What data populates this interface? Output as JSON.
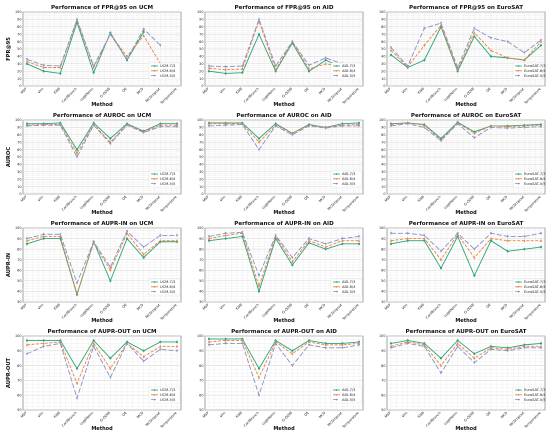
{
  "colors": {
    "s1": "#2ba37a",
    "s2": "#e8843c",
    "s3": "#8a8fc9"
  },
  "chart_data": [
    {
      "type": "line",
      "title": "Performance of FPR@95 on UCM",
      "xlabel": "Method",
      "ylabel": "FPR@95",
      "ylim": [
        0,
        100
      ],
      "yticks": [
        0,
        10,
        20,
        30,
        40,
        50,
        60,
        70,
        80,
        90,
        100
      ],
      "categories": [
        "MSP",
        "Vim",
        "KNN",
        "ConfBranch",
        "LogitNorm",
        "G-ODIN",
        "OE",
        "MCD",
        "MCDropout",
        "Temperature"
      ],
      "series": [
        {
          "name": "UCM-7/3",
          "values": [
            30,
            20,
            17,
            86,
            18,
            72,
            35,
            73,
            null,
            null
          ]
        },
        {
          "name": "UCM-6/4",
          "values": [
            33,
            25,
            25,
            89,
            25,
            70,
            40,
            68,
            30,
            null
          ]
        },
        {
          "name": "UCM-5/5",
          "values": [
            36,
            28,
            27,
            90,
            27,
            70,
            36,
            77,
            55,
            null
          ]
        }
      ]
    },
    {
      "type": "line",
      "title": "Performance of FPR@95 on AID",
      "xlabel": "Method",
      "ylabel": "",
      "ylim": [
        0,
        100
      ],
      "yticks": [
        0,
        10,
        20,
        30,
        40,
        50,
        60,
        70,
        80,
        90,
        100
      ],
      "categories": [
        "MSP",
        "Vim",
        "KNN",
        "ConfBranch",
        "LogitNorm",
        "G-ODIN",
        "OE",
        "MCD",
        "MCDropout",
        "Temperature"
      ],
      "series": [
        {
          "name": "AID-7/3",
          "values": [
            20,
            17,
            18,
            70,
            20,
            58,
            20,
            35,
            25,
            null
          ]
        },
        {
          "name": "AID-6/4",
          "values": [
            24,
            22,
            23,
            88,
            22,
            60,
            23,
            30,
            26,
            null
          ]
        },
        {
          "name": "AID-5/5",
          "values": [
            27,
            26,
            27,
            90,
            27,
            60,
            28,
            38,
            30,
            null
          ]
        }
      ]
    },
    {
      "type": "line",
      "title": "Performance of FPR@95 on EuroSAT",
      "xlabel": "Method",
      "ylabel": "",
      "ylim": [
        0,
        100
      ],
      "yticks": [
        0,
        10,
        20,
        30,
        40,
        50,
        60,
        70,
        80,
        90,
        100
      ],
      "categories": [
        "MSP",
        "Vim",
        "KNN",
        "ConfBranch",
        "LogitNorm",
        "G-ODIN",
        "OE",
        "MCD",
        "MCDropout",
        "Temperature"
      ],
      "series": [
        {
          "name": "EuroSAT-7/3",
          "values": [
            42,
            25,
            35,
            80,
            20,
            67,
            40,
            38,
            35,
            55
          ]
        },
        {
          "name": "EuroSAT-6/4",
          "values": [
            48,
            26,
            55,
            82,
            22,
            72,
            48,
            38,
            35,
            60
          ]
        },
        {
          "name": "EuroSAT-5/5",
          "values": [
            52,
            27,
            78,
            85,
            25,
            78,
            65,
            60,
            45,
            62
          ]
        }
      ]
    },
    {
      "type": "line",
      "title": "Performance of AUROC on UCM",
      "xlabel": "Method",
      "ylabel": "AUROC",
      "ylim": [
        0,
        100
      ],
      "yticks": [
        0,
        10,
        20,
        30,
        40,
        50,
        60,
        70,
        80,
        90,
        100
      ],
      "categories": [
        "MSP",
        "Vim",
        "KNN",
        "ConfBranch",
        "LogitNorm",
        "G-ODIN",
        "OE",
        "MCD",
        "MCDropout",
        "Temperature"
      ],
      "series": [
        {
          "name": "UCM-7/3",
          "values": [
            95,
            95,
            96,
            60,
            96,
            75,
            95,
            85,
            95,
            95
          ]
        },
        {
          "name": "UCM-6/4",
          "values": [
            93,
            94,
            94,
            55,
            94,
            70,
            94,
            84,
            93,
            93
          ]
        },
        {
          "name": "UCM-5/5",
          "values": [
            92,
            93,
            93,
            50,
            93,
            68,
            93,
            83,
            91,
            91
          ]
        }
      ]
    },
    {
      "type": "line",
      "title": "Performance of AUROC on AID",
      "xlabel": "Method",
      "ylabel": "",
      "ylim": [
        0,
        100
      ],
      "yticks": [
        0,
        10,
        20,
        30,
        40,
        50,
        60,
        70,
        80,
        90,
        100
      ],
      "categories": [
        "MSP",
        "Vim",
        "KNN",
        "ConfBranch",
        "LogitNorm",
        "G-ODIN",
        "OE",
        "MCD",
        "MCDropout",
        "Temperature"
      ],
      "series": [
        {
          "name": "AID-7/3",
          "values": [
            96,
            96,
            96,
            75,
            95,
            82,
            94,
            90,
            95,
            96
          ]
        },
        {
          "name": "AID-6/4",
          "values": [
            95,
            95,
            95,
            70,
            93,
            82,
            93,
            90,
            93,
            94
          ]
        },
        {
          "name": "AID-5/5",
          "values": [
            92,
            93,
            94,
            60,
            92,
            80,
            92,
            89,
            92,
            92
          ]
        }
      ]
    },
    {
      "type": "line",
      "title": "Performance of AUROC on EuroSAT",
      "xlabel": "Method",
      "ylabel": "",
      "ylim": [
        0,
        100
      ],
      "yticks": [
        0,
        10,
        20,
        30,
        40,
        50,
        60,
        70,
        80,
        90,
        100
      ],
      "categories": [
        "MSP",
        "Vim",
        "KNN",
        "ConfBranch",
        "LogitNorm",
        "G-ODIN",
        "OE",
        "MCD",
        "MCDropout",
        "Temperature"
      ],
      "series": [
        {
          "name": "EuroSAT-7/3",
          "values": [
            95,
            96,
            94,
            75,
            97,
            84,
            92,
            92,
            93,
            94
          ]
        },
        {
          "name": "EuroSAT-6/4",
          "values": [
            94,
            96,
            93,
            73,
            96,
            82,
            92,
            91,
            92,
            93
          ]
        },
        {
          "name": "EuroSAT-5/5",
          "values": [
            92,
            95,
            90,
            72,
            95,
            76,
            90,
            89,
            90,
            91
          ]
        }
      ]
    },
    {
      "type": "line",
      "title": "Performance of AUPR-IN on UCM",
      "xlabel": "Method",
      "ylabel": "AUPR-IN",
      "ylim": [
        30,
        100
      ],
      "yticks": [
        30,
        40,
        50,
        60,
        70,
        80,
        90,
        100
      ],
      "categories": [
        "MSP",
        "Vim",
        "KNN",
        "ConfBranch",
        "LogitNorm",
        "G-ODIN",
        "OE",
        "MCD",
        "MCDropout",
        "Temperature"
      ],
      "series": [
        {
          "name": "UCM-7/3",
          "values": [
            85,
            90,
            90,
            37,
            87,
            50,
            90,
            72,
            87,
            87
          ]
        },
        {
          "name": "UCM-6/4",
          "values": [
            88,
            92,
            92,
            38,
            86,
            60,
            95,
            75,
            88,
            88
          ]
        },
        {
          "name": "UCM-5/5",
          "values": [
            90,
            94,
            94,
            48,
            87,
            63,
            97,
            82,
            93,
            93
          ]
        }
      ]
    },
    {
      "type": "line",
      "title": "Performance of AUPR-IN on AID",
      "xlabel": "Method",
      "ylabel": "",
      "ylim": [
        30,
        100
      ],
      "yticks": [
        30,
        40,
        50,
        60,
        70,
        80,
        90,
        100
      ],
      "categories": [
        "MSP",
        "Vim",
        "KNN",
        "ConfBranch",
        "LogitNorm",
        "G-ODIN",
        "OE",
        "MCD",
        "MCDropout",
        "Temperature"
      ],
      "series": [
        {
          "name": "AID-7/3",
          "values": [
            88,
            90,
            92,
            40,
            90,
            65,
            86,
            80,
            85,
            85
          ]
        },
        {
          "name": "AID-6/4",
          "values": [
            90,
            93,
            95,
            45,
            92,
            68,
            88,
            82,
            88,
            88
          ]
        },
        {
          "name": "AID-5/5",
          "values": [
            92,
            95,
            96,
            55,
            93,
            72,
            90,
            85,
            90,
            92
          ]
        }
      ]
    },
    {
      "type": "line",
      "title": "Performance of AUPR-IN on EuroSAT",
      "xlabel": "Method",
      "ylabel": "",
      "ylim": [
        30,
        100
      ],
      "yticks": [
        30,
        40,
        50,
        60,
        70,
        80,
        90,
        100
      ],
      "categories": [
        "MSP",
        "Vim",
        "KNN",
        "ConfBranch",
        "LogitNorm",
        "G-ODIN",
        "OE",
        "MCD",
        "MCDropout",
        "Temperature"
      ],
      "series": [
        {
          "name": "EuroSAT-7/3",
          "values": [
            85,
            88,
            88,
            62,
            92,
            55,
            88,
            78,
            80,
            82
          ]
        },
        {
          "name": "EuroSAT-6/4",
          "values": [
            88,
            90,
            90,
            70,
            94,
            72,
            90,
            88,
            88,
            88
          ]
        },
        {
          "name": "EuroSAT-5/5",
          "values": [
            95,
            95,
            93,
            78,
            95,
            80,
            95,
            92,
            92,
            95
          ]
        }
      ]
    },
    {
      "type": "line",
      "title": "Performance of AUPR-OUT on UCM",
      "xlabel": "Method",
      "ylabel": "AUPR-OUT",
      "ylim": [
        50,
        100
      ],
      "yticks": [
        50,
        60,
        70,
        80,
        90,
        100
      ],
      "categories": [
        "MSP",
        "Vim",
        "KNN",
        "ConfBranch",
        "LogitNorm",
        "G-ODIN",
        "OE",
        "MCD",
        "MCDropout",
        "Temperature"
      ],
      "series": [
        {
          "name": "UCM-7/3",
          "values": [
            97,
            97,
            97,
            78,
            97,
            85,
            96,
            90,
            96,
            96
          ]
        },
        {
          "name": "UCM-6/4",
          "values": [
            94,
            95,
            96,
            68,
            95,
            78,
            95,
            86,
            93,
            93
          ]
        },
        {
          "name": "UCM-5/5",
          "values": [
            88,
            93,
            95,
            58,
            93,
            72,
            95,
            83,
            91,
            90
          ]
        }
      ]
    },
    {
      "type": "line",
      "title": "Performance of AUPR-OUT on AID",
      "xlabel": "Method",
      "ylabel": "",
      "ylim": [
        50,
        100
      ],
      "yticks": [
        50,
        60,
        70,
        80,
        90,
        100
      ],
      "categories": [
        "MSP",
        "Vim",
        "KNN",
        "ConfBranch",
        "LogitNorm",
        "G-ODIN",
        "OE",
        "MCD",
        "MCDropout",
        "Temperature"
      ],
      "series": [
        {
          "name": "AID-7/3",
          "values": [
            98,
            98,
            98,
            78,
            97,
            90,
            97,
            95,
            95,
            96
          ]
        },
        {
          "name": "AID-6/4",
          "values": [
            96,
            97,
            97,
            72,
            96,
            88,
            96,
            94,
            94,
            95
          ]
        },
        {
          "name": "AID-5/5",
          "values": [
            94,
            95,
            95,
            60,
            95,
            80,
            94,
            92,
            92,
            94
          ]
        }
      ]
    },
    {
      "type": "line",
      "title": "Performance of AUPR-OUT on EuroSAT",
      "xlabel": "Method",
      "ylabel": "",
      "ylim": [
        50,
        100
      ],
      "yticks": [
        50,
        60,
        70,
        80,
        90,
        100
      ],
      "categories": [
        "MSP",
        "Vim",
        "KNN",
        "ConfBranch",
        "LogitNorm",
        "G-ODIN",
        "OE",
        "MCD",
        "MCDropout",
        "Temperature"
      ],
      "series": [
        {
          "name": "EuroSAT-7/3",
          "values": [
            95,
            97,
            95,
            85,
            97,
            88,
            93,
            92,
            94,
            95
          ]
        },
        {
          "name": "EuroSAT-6/4",
          "values": [
            93,
            96,
            94,
            80,
            95,
            85,
            92,
            91,
            93,
            93
          ]
        },
        {
          "name": "EuroSAT-5/5",
          "values": [
            92,
            95,
            93,
            75,
            93,
            82,
            91,
            90,
            92,
            92
          ]
        }
      ]
    }
  ]
}
